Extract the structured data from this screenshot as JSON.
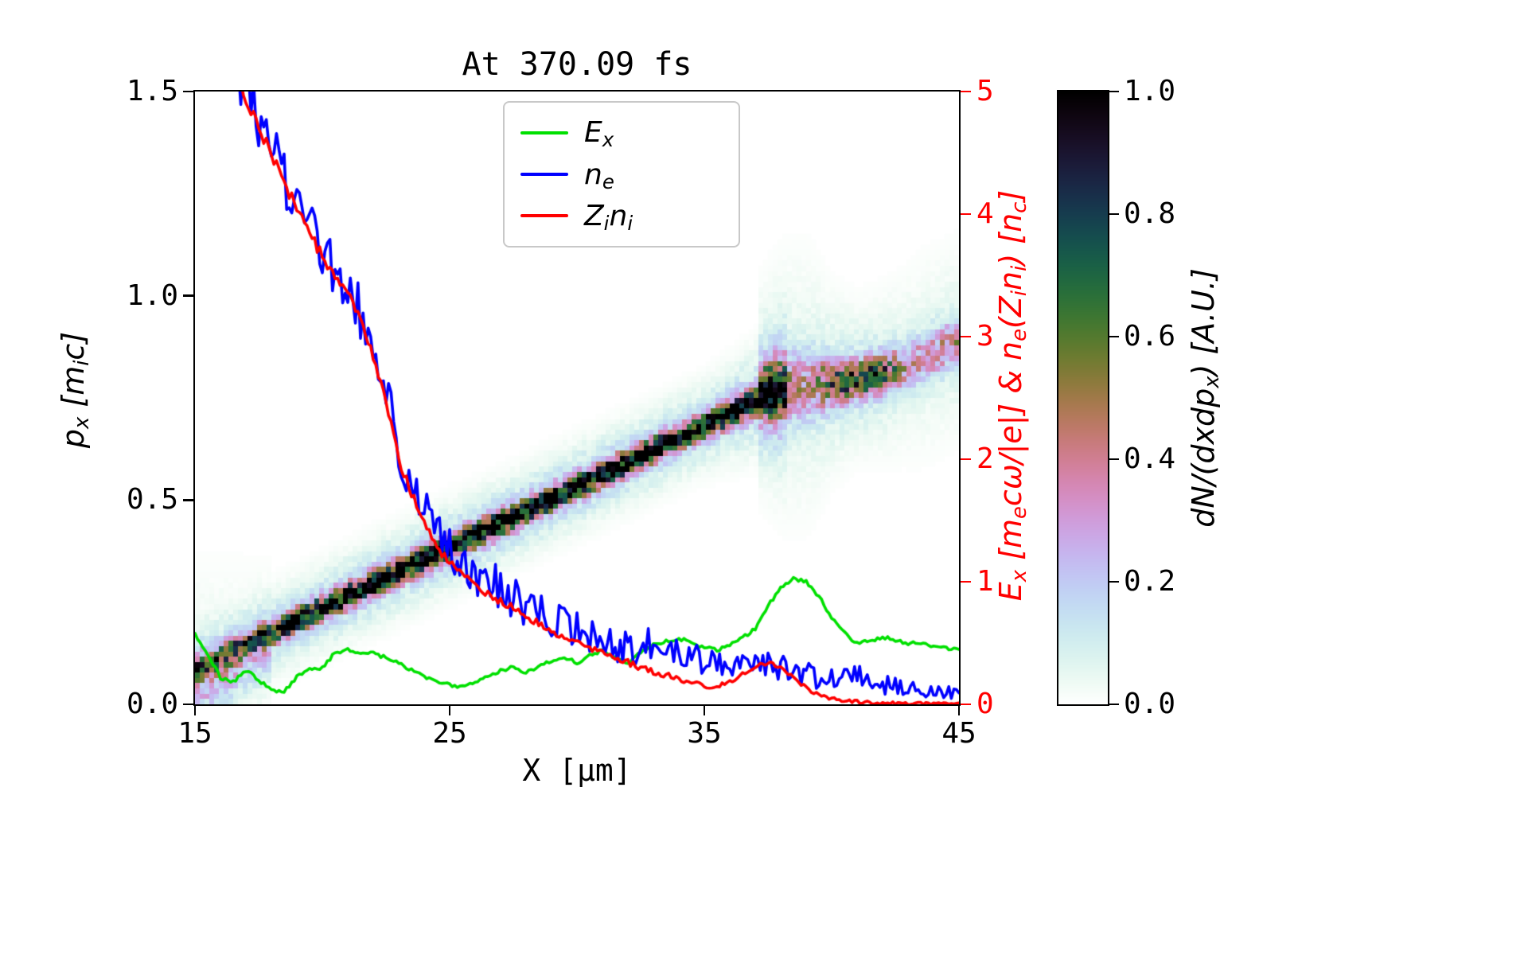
{
  "chart_data": {
    "type": "heatmap",
    "title": "At 370.09 fs",
    "xlabel": "X [μm]",
    "xlim": [
      15,
      45
    ],
    "x_ticks": [
      "15",
      "25",
      "35",
      "45"
    ],
    "left_axis": {
      "label": "p_{x} [m_{i}c]",
      "lim": [
        0,
        1.5
      ],
      "ticks": [
        "0.0",
        "0.5",
        "1.0",
        "1.5"
      ],
      "color": "#000000"
    },
    "right_axis": {
      "label": "E_{x} [m_{e}cω/|e|] & n_{e}(Z_{i}n_{i}) [n_{c}]",
      "lim": [
        0,
        5
      ],
      "ticks": [
        "0",
        "1",
        "2",
        "3",
        "4",
        "5"
      ],
      "color": "#ff0000"
    },
    "colorbar": {
      "label": "dN/(dxdp_{x}) [A.U.]",
      "lim": [
        0,
        1
      ],
      "ticks": [
        "0.0",
        "0.2",
        "0.4",
        "0.6",
        "0.8",
        "1.0"
      ],
      "colormap": "cubehelix_r"
    },
    "series": [
      {
        "name": "E_x",
        "label": "E_{x}",
        "type": "line",
        "axis": "right",
        "color": "#00e000",
        "x0": 15,
        "dx": 0.5,
        "noise_start": 0.015,
        "noise_end": 0.015,
        "values": [
          0.58,
          0.4,
          0.22,
          0.18,
          0.28,
          0.2,
          0.12,
          0.1,
          0.22,
          0.28,
          0.3,
          0.42,
          0.45,
          0.4,
          0.42,
          0.38,
          0.34,
          0.28,
          0.22,
          0.18,
          0.16,
          0.14,
          0.18,
          0.22,
          0.28,
          0.3,
          0.26,
          0.3,
          0.36,
          0.38,
          0.34,
          0.4,
          0.44,
          0.38,
          0.34,
          0.42,
          0.48,
          0.52,
          0.54,
          0.5,
          0.46,
          0.44,
          0.48,
          0.54,
          0.62,
          0.8,
          0.95,
          1.02,
          1.0,
          0.88,
          0.7,
          0.58,
          0.5,
          0.52,
          0.55,
          0.52,
          0.5,
          0.5,
          0.48,
          0.46,
          0.44
        ]
      },
      {
        "name": "n_e",
        "label": "n_{e}",
        "type": "line",
        "axis": "right",
        "color": "#0000ff",
        "x0": 16.5,
        "dx": 0.5,
        "noise_start": 0.25,
        "noise_end": 0.06,
        "values": [
          5.3,
          5.0,
          4.75,
          4.5,
          4.3,
          4.1,
          3.9,
          3.7,
          3.55,
          3.4,
          3.2,
          2.95,
          2.6,
          2.1,
          1.8,
          1.6,
          1.4,
          1.25,
          1.15,
          1.05,
          1.0,
          0.95,
          0.88,
          0.8,
          0.75,
          0.7,
          0.65,
          0.6,
          0.55,
          0.5,
          0.48,
          0.45,
          0.48,
          0.52,
          0.45,
          0.4,
          0.37,
          0.34,
          0.3,
          0.3,
          0.32,
          0.35,
          0.33,
          0.3,
          0.27,
          0.25,
          0.22,
          0.2,
          0.24,
          0.26,
          0.2,
          0.16,
          0.15,
          0.14,
          0.13,
          0.12,
          0.11,
          0.1
        ]
      },
      {
        "name": "Z_i n_i",
        "label": "Z_{i}n_{i}",
        "type": "line",
        "axis": "right",
        "color": "#ff0000",
        "x0": 16.5,
        "dx": 0.5,
        "noise_start": 0.05,
        "noise_end": 0.008,
        "values": [
          5.3,
          4.95,
          4.7,
          4.5,
          4.25,
          4.05,
          3.85,
          3.65,
          3.5,
          3.35,
          3.15,
          2.85,
          2.45,
          2.0,
          1.72,
          1.5,
          1.3,
          1.15,
          1.06,
          0.98,
          0.9,
          0.84,
          0.78,
          0.72,
          0.66,
          0.6,
          0.55,
          0.5,
          0.45,
          0.42,
          0.38,
          0.34,
          0.3,
          0.27,
          0.24,
          0.2,
          0.17,
          0.15,
          0.15,
          0.18,
          0.24,
          0.3,
          0.34,
          0.3,
          0.22,
          0.13,
          0.08,
          0.05,
          0.03,
          0.02,
          0.015,
          0.01,
          0.01,
          0.008,
          0.006,
          0.005,
          0.004,
          0.003
        ]
      }
    ],
    "heatmap": {
      "quantity": "dN/(dxdp_x)",
      "value_range": [
        0,
        1
      ],
      "ridges": {
        "main_streak": [
          [
            15,
            0.085,
            0.45,
            0.018
          ],
          [
            16,
            0.115,
            0.55,
            0.018
          ],
          [
            17,
            0.145,
            0.7,
            0.018
          ],
          [
            18,
            0.175,
            0.8,
            0.018
          ],
          [
            19,
            0.205,
            0.85,
            0.018
          ],
          [
            20,
            0.235,
            0.9,
            0.018
          ],
          [
            21,
            0.265,
            0.92,
            0.018
          ],
          [
            22,
            0.295,
            0.92,
            0.018
          ],
          [
            23,
            0.324,
            0.95,
            0.018
          ],
          [
            24,
            0.354,
            0.95,
            0.018
          ],
          [
            25,
            0.384,
            0.97,
            0.018
          ],
          [
            26,
            0.414,
            0.95,
            0.018
          ],
          [
            27,
            0.443,
            0.95,
            0.018
          ],
          [
            28,
            0.473,
            0.95,
            0.018
          ],
          [
            29,
            0.503,
            0.93,
            0.018
          ],
          [
            30,
            0.533,
            0.93,
            0.018
          ],
          [
            31,
            0.562,
            0.93,
            0.018
          ],
          [
            32,
            0.592,
            0.93,
            0.018
          ],
          [
            33,
            0.622,
            0.92,
            0.018
          ],
          [
            34,
            0.652,
            0.92,
            0.018
          ],
          [
            35,
            0.681,
            0.9,
            0.018
          ],
          [
            36,
            0.711,
            0.9,
            0.02
          ],
          [
            37,
            0.741,
            0.88,
            0.022
          ],
          [
            37.8,
            0.762,
            0.8,
            0.028
          ],
          [
            38.3,
            0.772,
            0.5,
            0.035
          ]
        ],
        "upper_branch": [
          [
            37.2,
            0.77,
            0.5,
            0.04
          ],
          [
            38,
            0.775,
            0.42,
            0.05
          ],
          [
            39,
            0.78,
            0.3,
            0.055
          ],
          [
            40,
            0.785,
            0.55,
            0.035
          ],
          [
            41,
            0.795,
            0.7,
            0.028
          ],
          [
            42,
            0.81,
            0.6,
            0.03
          ],
          [
            42.8,
            0.825,
            0.35,
            0.035
          ],
          [
            43.5,
            0.845,
            0.28,
            0.04
          ],
          [
            44.2,
            0.865,
            0.3,
            0.04
          ],
          [
            45,
            0.89,
            0.35,
            0.038
          ]
        ],
        "low_energy_smear": [
          [
            15,
            0.05,
            0.22,
            0.05
          ],
          [
            16,
            0.07,
            0.18,
            0.05
          ],
          [
            17,
            0.1,
            0.12,
            0.05
          ],
          [
            18,
            0.13,
            0.08,
            0.05
          ]
        ]
      }
    }
  }
}
